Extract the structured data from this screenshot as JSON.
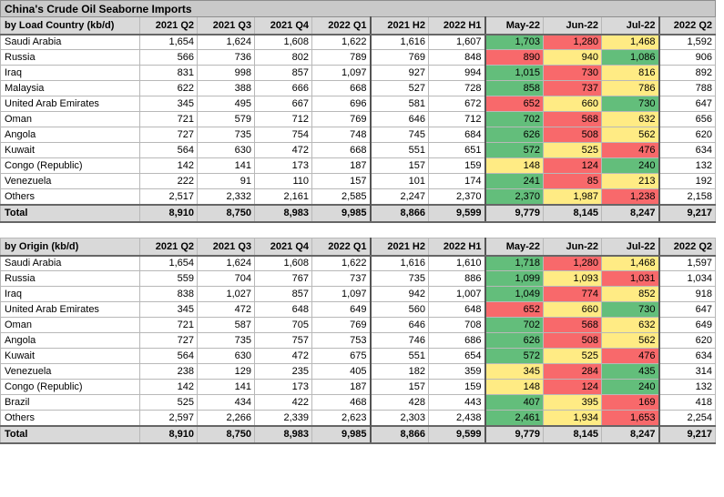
{
  "title": "China's Crude Oil Seaborne Imports",
  "colors": {
    "high": "#63be7b",
    "mid": "#ffeb84",
    "low": "#f8696b",
    "header_bg": "#d9d9d9",
    "title_bg": "#c9c9c9"
  },
  "columns": [
    "2021 Q2",
    "2021 Q3",
    "2021 Q4",
    "2022 Q1",
    "2021 H2",
    "2022 H1",
    "May-22",
    "Jun-22",
    "Jul-22",
    "2022 Q2"
  ],
  "tables": [
    {
      "heading": "by Load Country (kb/d)",
      "rows": [
        {
          "label": "Saudi Arabia",
          "values": [
            "1,654",
            "1,624",
            "1,608",
            "1,622",
            "1,616",
            "1,607",
            "1,703",
            "1,280",
            "1,468",
            "1,592"
          ],
          "heat": [
            "g",
            "r",
            "y"
          ]
        },
        {
          "label": "Russia",
          "values": [
            "566",
            "736",
            "802",
            "789",
            "769",
            "848",
            "890",
            "940",
            "1,086",
            "906"
          ],
          "heat": [
            "r",
            "y",
            "g"
          ]
        },
        {
          "label": "Iraq",
          "values": [
            "831",
            "998",
            "857",
            "1,097",
            "927",
            "994",
            "1,015",
            "730",
            "816",
            "892"
          ],
          "heat": [
            "g",
            "r",
            "y"
          ]
        },
        {
          "label": "Malaysia",
          "values": [
            "622",
            "388",
            "666",
            "668",
            "527",
            "728",
            "858",
            "737",
            "786",
            "788"
          ],
          "heat": [
            "g",
            "r",
            "y"
          ]
        },
        {
          "label": "United Arab Emirates",
          "values": [
            "345",
            "495",
            "667",
            "696",
            "581",
            "672",
            "652",
            "660",
            "730",
            "647"
          ],
          "heat": [
            "r",
            "y",
            "g"
          ]
        },
        {
          "label": "Oman",
          "values": [
            "721",
            "579",
            "712",
            "769",
            "646",
            "712",
            "702",
            "568",
            "632",
            "656"
          ],
          "heat": [
            "g",
            "r",
            "y"
          ]
        },
        {
          "label": "Angola",
          "values": [
            "727",
            "735",
            "754",
            "748",
            "745",
            "684",
            "626",
            "508",
            "562",
            "620"
          ],
          "heat": [
            "g",
            "r",
            "y"
          ]
        },
        {
          "label": "Kuwait",
          "values": [
            "564",
            "630",
            "472",
            "668",
            "551",
            "651",
            "572",
            "525",
            "476",
            "634"
          ],
          "heat": [
            "g",
            "y",
            "r"
          ]
        },
        {
          "label": "Congo (Republic)",
          "values": [
            "142",
            "141",
            "173",
            "187",
            "157",
            "159",
            "148",
            "124",
            "240",
            "132"
          ],
          "heat": [
            "y",
            "r",
            "g"
          ]
        },
        {
          "label": "Venezuela",
          "values": [
            "222",
            "91",
            "110",
            "157",
            "101",
            "174",
            "241",
            "85",
            "213",
            "192"
          ],
          "heat": [
            "g",
            "r",
            "y"
          ]
        },
        {
          "label": "Others",
          "values": [
            "2,517",
            "2,332",
            "2,161",
            "2,585",
            "2,247",
            "2,370",
            "2,370",
            "1,987",
            "1,238",
            "2,158"
          ],
          "heat": [
            "g",
            "y",
            "r"
          ]
        }
      ],
      "total": {
        "label": "Total",
        "values": [
          "8,910",
          "8,750",
          "8,983",
          "9,985",
          "8,866",
          "9,599",
          "9,779",
          "8,145",
          "8,247",
          "9,217"
        ]
      }
    },
    {
      "heading": "by Origin (kb/d)",
      "rows": [
        {
          "label": "Saudi Arabia",
          "values": [
            "1,654",
            "1,624",
            "1,608",
            "1,622",
            "1,616",
            "1,610",
            "1,718",
            "1,280",
            "1,468",
            "1,597"
          ],
          "heat": [
            "g",
            "r",
            "y"
          ]
        },
        {
          "label": "Russia",
          "values": [
            "559",
            "704",
            "767",
            "737",
            "735",
            "886",
            "1,099",
            "1,093",
            "1,031",
            "1,034"
          ],
          "heat": [
            "g",
            "y",
            "r"
          ]
        },
        {
          "label": "Iraq",
          "values": [
            "838",
            "1,027",
            "857",
            "1,097",
            "942",
            "1,007",
            "1,049",
            "774",
            "852",
            "918"
          ],
          "heat": [
            "g",
            "r",
            "y"
          ]
        },
        {
          "label": "United Arab Emirates",
          "values": [
            "345",
            "472",
            "648",
            "649",
            "560",
            "648",
            "652",
            "660",
            "730",
            "647"
          ],
          "heat": [
            "r",
            "y",
            "g"
          ]
        },
        {
          "label": "Oman",
          "values": [
            "721",
            "587",
            "705",
            "769",
            "646",
            "708",
            "702",
            "568",
            "632",
            "649"
          ],
          "heat": [
            "g",
            "r",
            "y"
          ]
        },
        {
          "label": "Angola",
          "values": [
            "727",
            "735",
            "757",
            "753",
            "746",
            "686",
            "626",
            "508",
            "562",
            "620"
          ],
          "heat": [
            "g",
            "r",
            "y"
          ]
        },
        {
          "label": "Kuwait",
          "values": [
            "564",
            "630",
            "472",
            "675",
            "551",
            "654",
            "572",
            "525",
            "476",
            "634"
          ],
          "heat": [
            "g",
            "y",
            "r"
          ]
        },
        {
          "label": "Venezuela",
          "values": [
            "238",
            "129",
            "235",
            "405",
            "182",
            "359",
            "345",
            "284",
            "435",
            "314"
          ],
          "heat": [
            "y",
            "r",
            "g"
          ]
        },
        {
          "label": "Congo (Republic)",
          "values": [
            "142",
            "141",
            "173",
            "187",
            "157",
            "159",
            "148",
            "124",
            "240",
            "132"
          ],
          "heat": [
            "y",
            "r",
            "g"
          ]
        },
        {
          "label": "Brazil",
          "values": [
            "525",
            "434",
            "422",
            "468",
            "428",
            "443",
            "407",
            "395",
            "169",
            "418"
          ],
          "heat": [
            "g",
            "y",
            "r"
          ]
        },
        {
          "label": "Others",
          "values": [
            "2,597",
            "2,266",
            "2,339",
            "2,623",
            "2,303",
            "2,438",
            "2,461",
            "1,934",
            "1,653",
            "2,254"
          ],
          "heat": [
            "g",
            "y",
            "r"
          ]
        }
      ],
      "total": {
        "label": "Total",
        "values": [
          "8,910",
          "8,750",
          "8,983",
          "9,985",
          "8,866",
          "9,599",
          "9,779",
          "8,145",
          "8,247",
          "9,217"
        ]
      }
    }
  ]
}
